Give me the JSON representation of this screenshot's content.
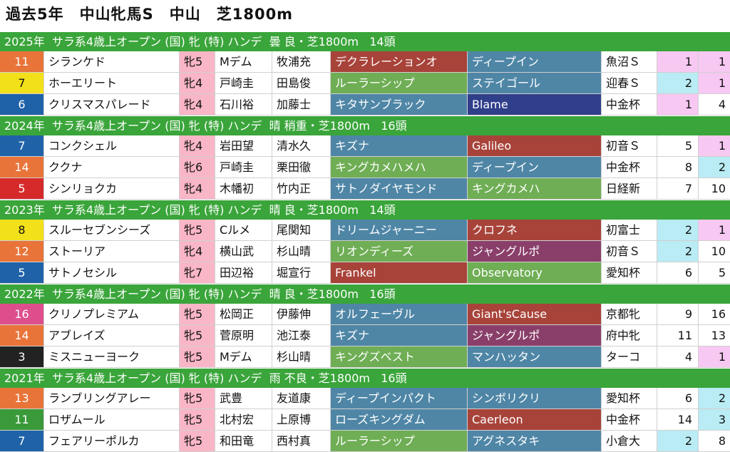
{
  "title": "過去5年　中山牝馬S　中山　芝1800m",
  "colors": {
    "header_bg": "#3aa53a",
    "sex_bg": "#f9b6c6",
    "pink_highlight": "#f7c8f2",
    "blue_highlight": "#b9ecf4"
  },
  "sections": [
    {
      "header": "2025年  サラ系4歳上オープン (国) 牝 (特) ハンデ  曇 良・芝1800m   14頭",
      "rows": [
        {
          "num": "11",
          "num_color": "#e8743a",
          "name": "シランケド",
          "sex": "牝5",
          "jockey": "Mデム",
          "trainer": "牧浦充",
          "sire": "デクラレーションオ",
          "sire_color": "#a8433a",
          "bms": "ディープイン",
          "bms_color": "#4f86a6",
          "prev": "魚沼Ｓ",
          "pop": "1",
          "pop_hl": "pink",
          "fin": "1",
          "fin_hl": "pink"
        },
        {
          "num": "7",
          "num_color": "#f2e11a",
          "num_text_color": "#111",
          "name": "ホーエリート",
          "sex": "牝4",
          "jockey": "戸崎圭",
          "trainer": "田島俊",
          "sire": "ルーラーシップ",
          "sire_color": "#6fae55",
          "bms": "ステイゴール",
          "bms_color": "#4f86a6",
          "prev": "迎春Ｓ",
          "pop": "2",
          "pop_hl": "blue",
          "fin": "1",
          "fin_hl": "pink"
        },
        {
          "num": "6",
          "num_color": "#1f62a8",
          "name": "クリスマスパレード",
          "sex": "牝4",
          "jockey": "石川裕",
          "trainer": "加藤士",
          "sire": "キタサンブラック",
          "sire_color": "#4f86a6",
          "bms": "Blame",
          "bms_color": "#2f3f8a",
          "prev": "中金杯",
          "pop": "1",
          "pop_hl": "pink",
          "fin": "4",
          "fin_hl": ""
        }
      ]
    },
    {
      "header": "2024年  サラ系4歳上オープン (国) 牝 (特) ハンデ  晴 稍重・芝1800m   16頭",
      "rows": [
        {
          "num": "7",
          "num_color": "#1f62a8",
          "name": "コンクシェル",
          "sex": "牝4",
          "jockey": "岩田望",
          "trainer": "清水久",
          "sire": "キズナ",
          "sire_color": "#4f86a6",
          "bms": "Galileo",
          "bms_color": "#a8433a",
          "prev": "初音Ｓ",
          "pop": "5",
          "pop_hl": "",
          "fin": "1",
          "fin_hl": "pink"
        },
        {
          "num": "14",
          "num_color": "#e8743a",
          "name": "ククナ",
          "sex": "牝6",
          "jockey": "戸崎圭",
          "trainer": "栗田徹",
          "sire": "キングカメハメハ",
          "sire_color": "#6fae55",
          "bms": "ディープイン",
          "bms_color": "#4f86a6",
          "prev": "中金杯",
          "pop": "8",
          "pop_hl": "",
          "fin": "2",
          "fin_hl": "blue"
        },
        {
          "num": "5",
          "num_color": "#d62a2a",
          "name": "シンリョクカ",
          "sex": "牝4",
          "jockey": "木幡初",
          "trainer": "竹内正",
          "sire": "サトノダイヤモンド",
          "sire_color": "#4f86a6",
          "bms": "キングカメハ",
          "bms_color": "#6fae55",
          "prev": "日経新",
          "pop": "7",
          "pop_hl": "",
          "fin": "10",
          "fin_hl": ""
        }
      ]
    },
    {
      "header": "2023年  サラ系4歳上オープン (国) 牝 (特) ハンデ  晴 良・芝1800m   14頭",
      "rows": [
        {
          "num": "8",
          "num_color": "#f2e11a",
          "num_text_color": "#111",
          "name": "スルーセブンシーズ",
          "sex": "牝5",
          "jockey": "Cルメ",
          "trainer": "尾関知",
          "sire": "ドリームジャーニー",
          "sire_color": "#4f86a6",
          "bms": "クロフネ",
          "bms_color": "#a8433a",
          "prev": "初富士",
          "pop": "2",
          "pop_hl": "blue",
          "fin": "1",
          "fin_hl": "pink"
        },
        {
          "num": "12",
          "num_color": "#e8743a",
          "name": "ストーリア",
          "sex": "牝4",
          "jockey": "横山武",
          "trainer": "杉山晴",
          "sire": "リオンディーズ",
          "sire_color": "#6fae55",
          "bms": "ジャングルポ",
          "bms_color": "#8a3f6a",
          "prev": "初音Ｓ",
          "pop": "2",
          "pop_hl": "blue",
          "fin": "10",
          "fin_hl": ""
        },
        {
          "num": "5",
          "num_color": "#1f62a8",
          "name": "サトノセシル",
          "sex": "牝7",
          "jockey": "田辺裕",
          "trainer": "堀宣行",
          "sire": "Frankel",
          "sire_color": "#a8433a",
          "bms": "Observatory",
          "bms_color": "#6fae55",
          "prev": "愛知杯",
          "pop": "6",
          "pop_hl": "",
          "fin": "5",
          "fin_hl": ""
        }
      ]
    },
    {
      "header": "2022年  サラ系4歳上オープン (国) 牝 (特) ハンデ  晴 良・芝1800m   16頭",
      "rows": [
        {
          "num": "16",
          "num_color": "#de4e8c",
          "name": "クリノプレミアム",
          "sex": "牝5",
          "jockey": "松岡正",
          "trainer": "伊藤伸",
          "sire": "オルフェーヴル",
          "sire_color": "#4f86a6",
          "bms": "Giant'sCause",
          "bms_color": "#a8433a",
          "prev": "京都牝",
          "pop": "9",
          "pop_hl": "",
          "fin": "16",
          "fin_hl": ""
        },
        {
          "num": "14",
          "num_color": "#e8743a",
          "name": "アブレイズ",
          "sex": "牝5",
          "jockey": "菅原明",
          "trainer": "池江泰",
          "sire": "キズナ",
          "sire_color": "#4f86a6",
          "bms": "ジャングルポ",
          "bms_color": "#8a3f6a",
          "prev": "府中牝",
          "pop": "11",
          "pop_hl": "",
          "fin": "13",
          "fin_hl": ""
        },
        {
          "num": "3",
          "num_color": "#222222",
          "name": "ミスニューヨーク",
          "sex": "牝5",
          "jockey": "Mデム",
          "trainer": "杉山晴",
          "sire": "キングズベスト",
          "sire_color": "#6fae55",
          "bms": "マンハッタン",
          "bms_color": "#4f86a6",
          "prev": "ターコ",
          "pop": "4",
          "pop_hl": "",
          "fin": "1",
          "fin_hl": "pink"
        }
      ]
    },
    {
      "header": "2021年  サラ系4歳上オープン (国) 牝 (特) ハンデ  雨 不良・芝1800m   16頭",
      "rows": [
        {
          "num": "13",
          "num_color": "#e8743a",
          "name": "ランブリングアレー",
          "sex": "牝5",
          "jockey": "武豊",
          "trainer": "友道康",
          "sire": "ディープインパクト",
          "sire_color": "#4f86a6",
          "bms": "シンボリクリ",
          "bms_color": "#4f86a6",
          "prev": "愛知杯",
          "pop": "6",
          "pop_hl": "",
          "fin": "2",
          "fin_hl": "blue"
        },
        {
          "num": "11",
          "num_color": "#3a9a3a",
          "name": "ロザムール",
          "sex": "牝5",
          "jockey": "北村宏",
          "trainer": "上原博",
          "sire": "ローズキングダム",
          "sire_color": "#4f86a6",
          "bms": "Caerleon",
          "bms_color": "#a8433a",
          "prev": "中金杯",
          "pop": "14",
          "pop_hl": "",
          "fin": "3",
          "fin_hl": "blue"
        },
        {
          "num": "7",
          "num_color": "#1f62a8",
          "name": "フェアリーポルカ",
          "sex": "牝5",
          "jockey": "和田竜",
          "trainer": "西村真",
          "sire": "ルーラーシップ",
          "sire_color": "#6fae55",
          "bms": "アグネスタキ",
          "bms_color": "#4f86a6",
          "prev": "小倉大",
          "pop": "2",
          "pop_hl": "blue",
          "fin": "8",
          "fin_hl": ""
        }
      ]
    }
  ]
}
